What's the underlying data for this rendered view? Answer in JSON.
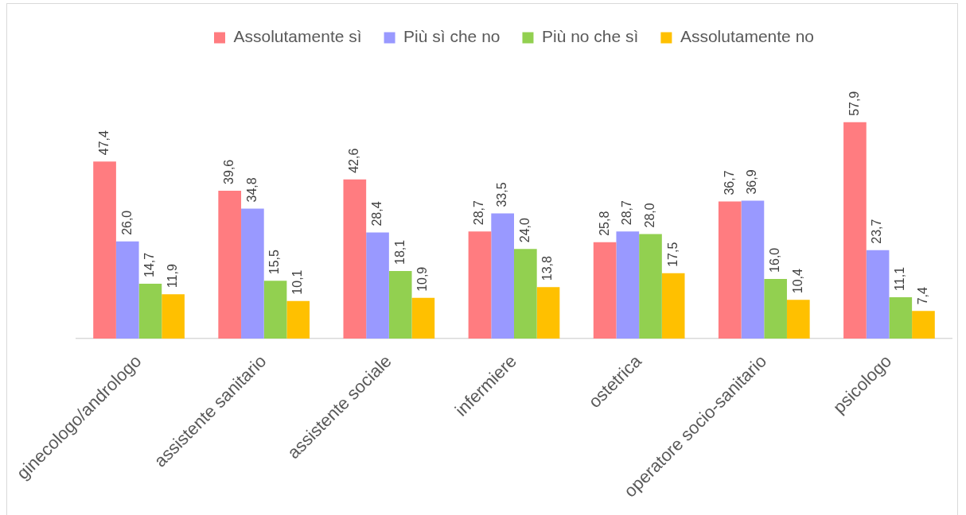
{
  "chart_data": {
    "type": "bar",
    "categories": [
      "ginecologo/andrologo",
      "assistente sanitario",
      "assistente sociale",
      "infermiere",
      "ostetrica",
      "operatore socio-sanitario",
      "psicologo"
    ],
    "series": [
      {
        "name": "Assolutamente sì",
        "color": "#ff7c80",
        "values": [
          47.4,
          39.6,
          42.6,
          28.7,
          25.8,
          36.7,
          57.9
        ],
        "value_labels": [
          "47,4",
          "39,6",
          "42,6",
          "28,7",
          "25,8",
          "36,7",
          "57,9"
        ]
      },
      {
        "name": "Più sì che no",
        "color": "#9999ff",
        "values": [
          26.0,
          34.8,
          28.4,
          33.5,
          28.7,
          36.9,
          23.7
        ],
        "value_labels": [
          "26,0",
          "34,8",
          "28,4",
          "33,5",
          "28,7",
          "36,9",
          "23,7"
        ]
      },
      {
        "name": "Più no che sì",
        "color": "#92d050",
        "values": [
          14.7,
          15.5,
          18.1,
          24.0,
          28.0,
          16.0,
          11.1
        ],
        "value_labels": [
          "14,7",
          "15,5",
          "18,1",
          "24,0",
          "28,0",
          "16,0",
          "11,1"
        ]
      },
      {
        "name": "Assolutamente no",
        "color": "#ffc000",
        "values": [
          11.9,
          10.1,
          10.9,
          13.8,
          17.5,
          10.4,
          7.4
        ],
        "value_labels": [
          "11,9",
          "10,1",
          "10,9",
          "13,8",
          "17,5",
          "10,4",
          "7,4"
        ]
      }
    ],
    "legend": "top",
    "tick_labels": "x"
  }
}
